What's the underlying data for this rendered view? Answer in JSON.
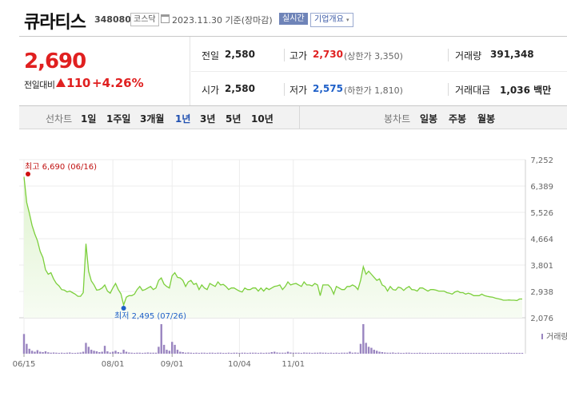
{
  "header": {
    "stock_name": "큐라티스",
    "stock_code": "348080",
    "market": "코스닥",
    "date": "2023.11.30 기준(장마감)",
    "realtime_button": "실시간",
    "company_info_button": "기업개요",
    "dropdown_arrow": "▾"
  },
  "price": {
    "current": "2,690",
    "change_label": "전일대비",
    "change": "110",
    "change_pct": "+4.26%",
    "up_color": "#e02020",
    "down_color": "#1f60c8"
  },
  "quote": {
    "prev_close_label": "전일",
    "prev_close": "2,580",
    "high_label": "고가",
    "high": "2,730",
    "upper_limit": "(상한가 3,350)",
    "volume_label": "거래량",
    "volume": "391,348",
    "open_label": "시가",
    "open": "2,580",
    "low_label": "저가",
    "low": "2,575",
    "lower_limit": "(하한가 1,810)",
    "amount_label": "거래대금",
    "amount": "1,036 백만"
  },
  "tabs": {
    "line_title": "선차트",
    "line": [
      "1일",
      "1주일",
      "3개월",
      "1년",
      "3년",
      "5년",
      "10년"
    ],
    "active": "1년",
    "candle_title": "봉차트",
    "candle": [
      "일봉",
      "주봉",
      "월봉"
    ]
  },
  "chart_data": {
    "type": "area",
    "y_ticks": [
      "7,252",
      "6,389",
      "5,526",
      "4,664",
      "3,801",
      "2,938",
      "2,076"
    ],
    "ylim": [
      2076,
      7252
    ],
    "x_ticks": [
      "06/15",
      "08/01",
      "09/01",
      "10/04",
      "11/01"
    ],
    "high_annotation": "최고 6,690 (06/16)",
    "low_annotation": "최저 2,495 (07/26)",
    "high_value": 6690,
    "low_value": 2495,
    "volume_label": "거래량",
    "line_color": "#7ccf3c",
    "volume_color": "#9a85c0",
    "close": [
      6690,
      5850,
      5500,
      5100,
      4820,
      4600,
      4250,
      4050,
      3650,
      3500,
      3550,
      3350,
      3200,
      3120,
      3000,
      2980,
      2920,
      2950,
      2900,
      2850,
      2780,
      2780,
      2900,
      4500,
      3600,
      3280,
      3150,
      2980,
      3000,
      3050,
      3150,
      2950,
      2880,
      3050,
      3200,
      3000,
      2860,
      2495,
      2750,
      2800,
      2800,
      2850,
      3000,
      3100,
      2970,
      3000,
      3050,
      3100,
      3000,
      3050,
      3300,
      3380,
      3180,
      3100,
      3050,
      3450,
      3550,
      3400,
      3380,
      3300,
      3100,
      3250,
      3300,
      3170,
      3200,
      3000,
      3150,
      3050,
      3000,
      3200,
      3150,
      3100,
      3250,
      3150,
      3170,
      3100,
      3000,
      3050,
      3050,
      3000,
      2950,
      2920,
      3050,
      3000,
      3000,
      3050,
      3050,
      2950,
      3050,
      2950,
      3050,
      3000,
      3050,
      3100,
      3120,
      3150,
      3000,
      3100,
      3250,
      3150,
      3180,
      3200,
      3150,
      3100,
      3250,
      3150,
      3150,
      3120,
      3200,
      3150,
      2800,
      3150,
      3150,
      3150,
      3050,
      2850,
      3100,
      3050,
      3000,
      3000,
      3100,
      3100,
      3150,
      3100,
      3000,
      3300,
      3750,
      3500,
      3600,
      3500,
      3400,
      3300,
      3350,
      3150,
      3100,
      2950,
      3100,
      3000,
      2980,
      3080,
      3050,
      2970,
      3050,
      3100,
      3000,
      2990,
      2950,
      3050,
      3050,
      3000,
      2950,
      3000,
      3000,
      2980,
      2950,
      2950,
      2950,
      2900,
      2880,
      2850,
      2920,
      2950,
      2900,
      2900,
      2850,
      2880,
      2850,
      2800,
      2800,
      2800,
      2850,
      2800,
      2780,
      2760,
      2750,
      2720,
      2700,
      2680,
      2650,
      2650,
      2660,
      2650,
      2650,
      2640,
      2690,
      2690
    ]
  }
}
